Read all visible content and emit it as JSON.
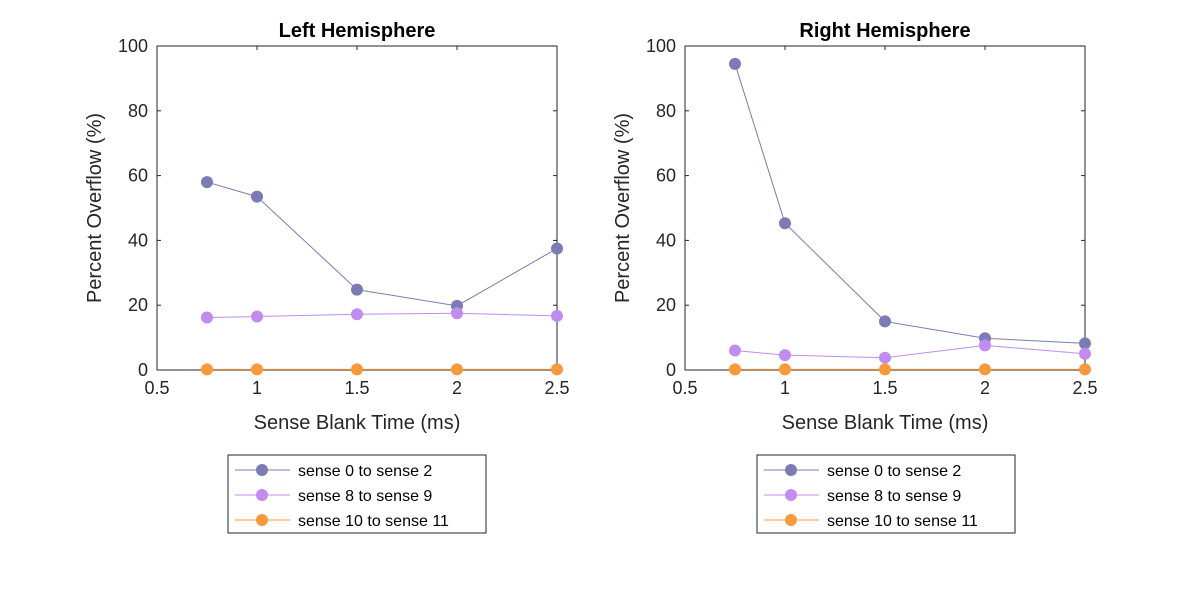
{
  "colors": {
    "series_1": "#7b7bb5",
    "series_2": "#c18cf0",
    "series_3": "#f8993a"
  },
  "chart_data": [
    {
      "type": "line",
      "title": "Left Hemisphere",
      "xlabel": "Sense Blank Time (ms)",
      "ylabel": "Percent Overflow (%)",
      "xlim": [
        0.5,
        2.5
      ],
      "ylim": [
        0,
        100
      ],
      "xticks": [
        "0.5",
        "1",
        "1.5",
        "2",
        "2.5"
      ],
      "yticks": [
        "0",
        "20",
        "40",
        "60",
        "80",
        "100"
      ],
      "x": [
        0.75,
        1,
        1.5,
        2,
        2.5
      ],
      "series": [
        {
          "name": "sense 0 to sense 2",
          "values": [
            58,
            53.5,
            24.8,
            19.8,
            37.5
          ]
        },
        {
          "name": "sense 8 to sense 9",
          "values": [
            16.2,
            16.5,
            17.2,
            17.5,
            16.7
          ]
        },
        {
          "name": "sense 10 to sense 11",
          "values": [
            0.2,
            0.2,
            0.2,
            0.2,
            0.2
          ]
        }
      ],
      "legend_position": "below"
    },
    {
      "type": "line",
      "title": "Right Hemisphere",
      "xlabel": "Sense Blank Time (ms)",
      "ylabel": "Percent Overflow (%)",
      "xlim": [
        0.5,
        2.5
      ],
      "ylim": [
        0,
        100
      ],
      "xticks": [
        "0.5",
        "1",
        "1.5",
        "2",
        "2.5"
      ],
      "yticks": [
        "0",
        "20",
        "40",
        "60",
        "80",
        "100"
      ],
      "x": [
        0.75,
        1,
        1.5,
        2,
        2.5
      ],
      "series": [
        {
          "name": "sense 0 to sense 2",
          "values": [
            94.5,
            45.3,
            15,
            9.8,
            8.2
          ]
        },
        {
          "name": "sense 8 to sense 9",
          "values": [
            6,
            4.6,
            3.8,
            7.6,
            5
          ]
        },
        {
          "name": "sense 10 to sense 11",
          "values": [
            0.2,
            0.2,
            0.2,
            0.2,
            0.2
          ]
        }
      ],
      "legend_position": "below"
    }
  ]
}
